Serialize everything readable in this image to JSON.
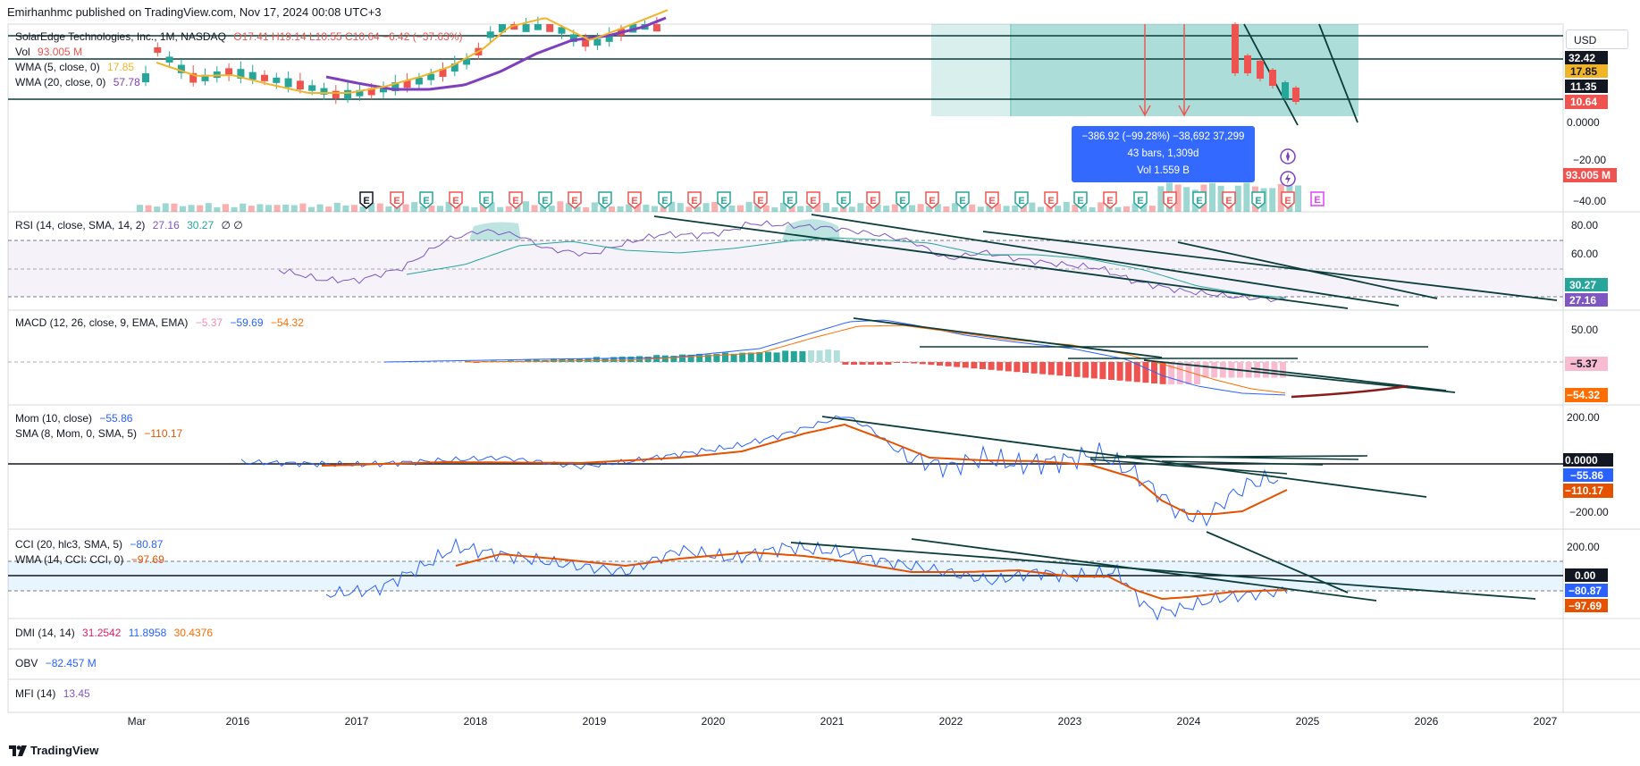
{
  "header": {
    "publisher": "Emirhanhmc published on TradingView.com, Nov 17, 2024 00:08 UTC+3"
  },
  "main_legend": {
    "symbol": "SolarEdge Technologies, Inc., 1M, NASDAQ",
    "ohlc": "O17.41 H19.14 L10.55 C10.64 −6.42 (−37.63%)",
    "vol_label": "Vol",
    "vol_value": "93.005 M",
    "wma5_label": "WMA (5, close, 0)",
    "wma5_value": "17.85",
    "wma20_label": "WMA (20, close, 0)",
    "wma20_value": "57.78"
  },
  "rsi_legend": {
    "label": "RSI (14, close, SMA, 14, 2)",
    "v1": "27.16",
    "v2": "30.27",
    "v3": "∅ ∅"
  },
  "macd_legend": {
    "label": "MACD (12, 26, close, 9, EMA, EMA)",
    "v1": "−5.37",
    "v2": "−59.69",
    "v3": "−54.32"
  },
  "mom_legend": {
    "label": "Mom (10, close)",
    "v1": "−55.86"
  },
  "sma_legend": {
    "label": "SMA (8, Mom, 0, SMA, 5)",
    "v1": "−110.17"
  },
  "cci_legend": {
    "label": "CCI (20, hlc3, SMA, 5)",
    "v1": "−80.87"
  },
  "wmacci_legend": {
    "label": "WMA (14, CCI: CCI, 0)",
    "v1": "−97.69"
  },
  "dmi_legend": {
    "label": "DMI (14, 14)",
    "v1": "31.2542",
    "v2": "11.8958",
    "v3": "30.4376"
  },
  "obv_legend": {
    "label": "OBV",
    "v1": "−82.457 M"
  },
  "mfi_legend": {
    "label": "MFI (14)",
    "v1": "13.45"
  },
  "currency_button": "USD",
  "measure_tooltip": {
    "line1": "−386.92 (−99.28%) −38,692 37,299",
    "line2": "43 bars, 1,309d",
    "line3": "Vol 1.559 B"
  },
  "branding": "TradingView",
  "colors": {
    "up": "#26a69a",
    "down": "#ef5350",
    "wma5": "#f0b429",
    "wma20": "#7e3fbf",
    "rsi": "#7e57c2",
    "rsi_ma": "#26a69a",
    "macd": "#2962ff",
    "signal": "#ff6d00",
    "mom": "#2962ff",
    "sma": "#e65100",
    "dmi": "#e91e63",
    "obv": "#2962ff",
    "mfi": "#7e57c2",
    "trend": "#0b3d3a",
    "zone": "#26a69a"
  },
  "chart_data": {
    "type": "candlestick",
    "title": "SolarEdge Technologies, Inc., 1M, NASDAQ",
    "x_tick_labels": [
      "Mar",
      "2016",
      "2017",
      "2018",
      "2019",
      "2020",
      "2021",
      "2022",
      "2023",
      "2024",
      "2025",
      "2026",
      "2027"
    ],
    "price_axis_ticks": [
      "0.0000",
      "−20.00",
      "−40.00"
    ],
    "price_labels": [
      "32.42",
      "17.85",
      "11.35",
      "10.64",
      "93.005 M"
    ],
    "rsi_ticks": [
      "80.00",
      "60.00"
    ],
    "rsi_labels": [
      "30.27",
      "27.16"
    ],
    "macd_ticks": [
      "50.00"
    ],
    "macd_labels": [
      "−5.37",
      "−54.32"
    ],
    "mom_ticks": [
      "200.00",
      "−200.00"
    ],
    "mom_labels": [
      "0.0000",
      "−55.86",
      "−110.17"
    ],
    "cci_ticks": [
      "200.00"
    ],
    "cci_labels": [
      "0.00",
      "−80.87",
      "−97.69"
    ],
    "earnings_marker": "E",
    "last_candle": {
      "open": 17.41,
      "high": 19.14,
      "low": 10.55,
      "close": 10.64,
      "change": -6.42,
      "change_pct": -37.63
    },
    "series": [
      {
        "name": "WMA (5, close, 0)",
        "last": 17.85
      },
      {
        "name": "WMA (20, close, 0)",
        "last": 57.78
      },
      {
        "name": "RSI",
        "last": 27.16
      },
      {
        "name": "RSI-based MA",
        "last": 30.27
      },
      {
        "name": "MACD histogram",
        "last": -5.37
      },
      {
        "name": "MACD",
        "last": -59.69
      },
      {
        "name": "MACD signal",
        "last": -54.32
      },
      {
        "name": "Mom (10)",
        "last": -55.86
      },
      {
        "name": "SMA (8) of Mom",
        "last": -110.17
      },
      {
        "name": "CCI (20)",
        "last": -80.87
      },
      {
        "name": "WMA (14) of CCI",
        "last": -97.69
      }
    ]
  }
}
